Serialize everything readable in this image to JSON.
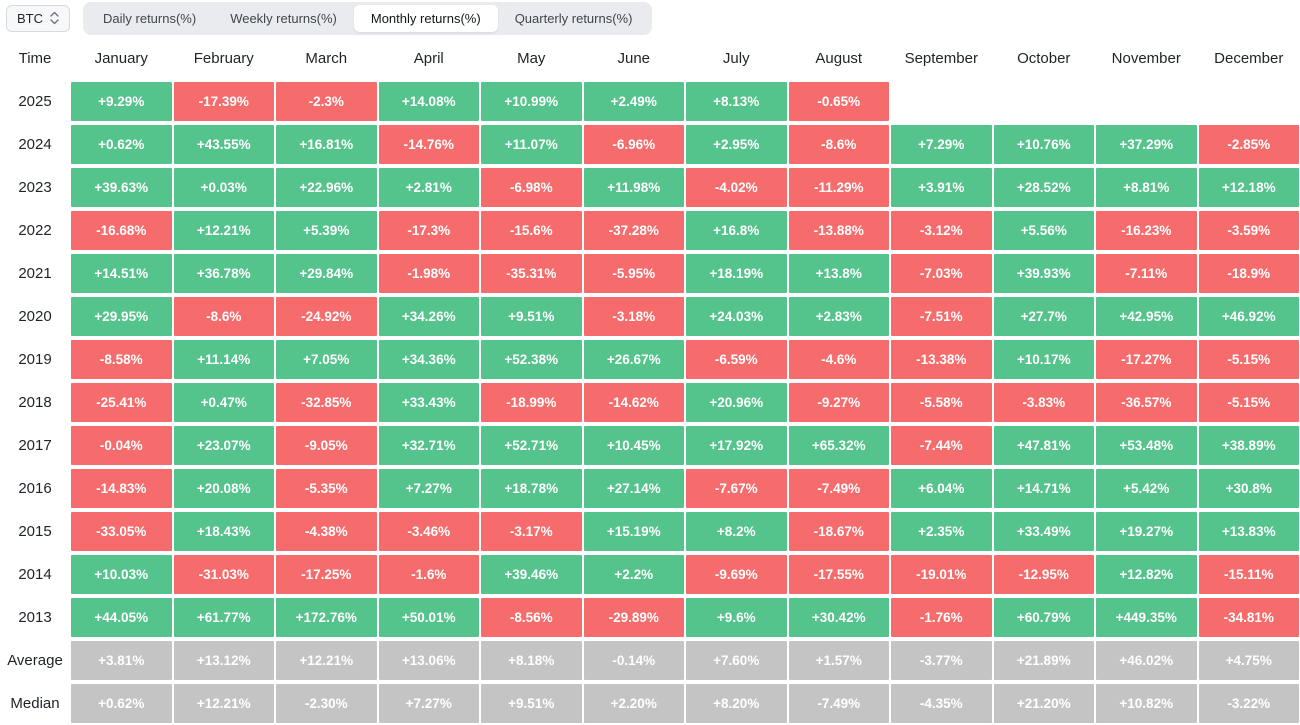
{
  "toolbar": {
    "coin_selector": "BTC",
    "tabs": [
      {
        "label": "Daily returns(%)",
        "active": false
      },
      {
        "label": "Weekly returns(%)",
        "active": false
      },
      {
        "label": "Monthly returns(%)",
        "active": true
      },
      {
        "label": "Quarterly returns(%)",
        "active": false
      }
    ]
  },
  "colors": {
    "positive": "#55c38c",
    "negative": "#f66c6c",
    "neutral": "#c4c4c4"
  },
  "table": {
    "time_header": "Time",
    "months": [
      "January",
      "February",
      "March",
      "April",
      "May",
      "June",
      "July",
      "August",
      "September",
      "October",
      "November",
      "December"
    ],
    "rows": [
      {
        "label": "2025",
        "type": "year",
        "values": [
          "+9.29%",
          "-17.39%",
          "-2.3%",
          "+14.08%",
          "+10.99%",
          "+2.49%",
          "+8.13%",
          "-0.65%",
          "",
          "",
          "",
          ""
        ]
      },
      {
        "label": "2024",
        "type": "year",
        "values": [
          "+0.62%",
          "+43.55%",
          "+16.81%",
          "-14.76%",
          "+11.07%",
          "-6.96%",
          "+2.95%",
          "-8.6%",
          "+7.29%",
          "+10.76%",
          "+37.29%",
          "-2.85%"
        ]
      },
      {
        "label": "2023",
        "type": "year",
        "values": [
          "+39.63%",
          "+0.03%",
          "+22.96%",
          "+2.81%",
          "-6.98%",
          "+11.98%",
          "-4.02%",
          "-11.29%",
          "+3.91%",
          "+28.52%",
          "+8.81%",
          "+12.18%"
        ]
      },
      {
        "label": "2022",
        "type": "year",
        "values": [
          "-16.68%",
          "+12.21%",
          "+5.39%",
          "-17.3%",
          "-15.6%",
          "-37.28%",
          "+16.8%",
          "-13.88%",
          "-3.12%",
          "+5.56%",
          "-16.23%",
          "-3.59%"
        ]
      },
      {
        "label": "2021",
        "type": "year",
        "values": [
          "+14.51%",
          "+36.78%",
          "+29.84%",
          "-1.98%",
          "-35.31%",
          "-5.95%",
          "+18.19%",
          "+13.8%",
          "-7.03%",
          "+39.93%",
          "-7.11%",
          "-18.9%"
        ]
      },
      {
        "label": "2020",
        "type": "year",
        "values": [
          "+29.95%",
          "-8.6%",
          "-24.92%",
          "+34.26%",
          "+9.51%",
          "-3.18%",
          "+24.03%",
          "+2.83%",
          "-7.51%",
          "+27.7%",
          "+42.95%",
          "+46.92%"
        ]
      },
      {
        "label": "2019",
        "type": "year",
        "values": [
          "-8.58%",
          "+11.14%",
          "+7.05%",
          "+34.36%",
          "+52.38%",
          "+26.67%",
          "-6.59%",
          "-4.6%",
          "-13.38%",
          "+10.17%",
          "-17.27%",
          "-5.15%"
        ]
      },
      {
        "label": "2018",
        "type": "year",
        "values": [
          "-25.41%",
          "+0.47%",
          "-32.85%",
          "+33.43%",
          "-18.99%",
          "-14.62%",
          "+20.96%",
          "-9.27%",
          "-5.58%",
          "-3.83%",
          "-36.57%",
          "-5.15%"
        ]
      },
      {
        "label": "2017",
        "type": "year",
        "values": [
          "-0.04%",
          "+23.07%",
          "-9.05%",
          "+32.71%",
          "+52.71%",
          "+10.45%",
          "+17.92%",
          "+65.32%",
          "-7.44%",
          "+47.81%",
          "+53.48%",
          "+38.89%"
        ]
      },
      {
        "label": "2016",
        "type": "year",
        "values": [
          "-14.83%",
          "+20.08%",
          "-5.35%",
          "+7.27%",
          "+18.78%",
          "+27.14%",
          "-7.67%",
          "-7.49%",
          "+6.04%",
          "+14.71%",
          "+5.42%",
          "+30.8%"
        ]
      },
      {
        "label": "2015",
        "type": "year",
        "values": [
          "-33.05%",
          "+18.43%",
          "-4.38%",
          "-3.46%",
          "-3.17%",
          "+15.19%",
          "+8.2%",
          "-18.67%",
          "+2.35%",
          "+33.49%",
          "+19.27%",
          "+13.83%"
        ]
      },
      {
        "label": "2014",
        "type": "year",
        "values": [
          "+10.03%",
          "-31.03%",
          "-17.25%",
          "-1.6%",
          "+39.46%",
          "+2.2%",
          "-9.69%",
          "-17.55%",
          "-19.01%",
          "-12.95%",
          "+12.82%",
          "-15.11%"
        ]
      },
      {
        "label": "2013",
        "type": "year",
        "values": [
          "+44.05%",
          "+61.77%",
          "+172.76%",
          "+50.01%",
          "-8.56%",
          "-29.89%",
          "+9.6%",
          "+30.42%",
          "-1.76%",
          "+60.79%",
          "+449.35%",
          "-34.81%"
        ]
      },
      {
        "label": "Average",
        "type": "summary",
        "values": [
          "+3.81%",
          "+13.12%",
          "+12.21%",
          "+13.06%",
          "+8.18%",
          "-0.14%",
          "+7.60%",
          "+1.57%",
          "-3.77%",
          "+21.89%",
          "+46.02%",
          "+4.75%"
        ]
      },
      {
        "label": "Median",
        "type": "summary",
        "values": [
          "+0.62%",
          "+12.21%",
          "-2.30%",
          "+7.27%",
          "+9.51%",
          "+2.20%",
          "+8.20%",
          "-7.49%",
          "-4.35%",
          "+21.20%",
          "+10.82%",
          "-3.22%"
        ]
      }
    ]
  }
}
